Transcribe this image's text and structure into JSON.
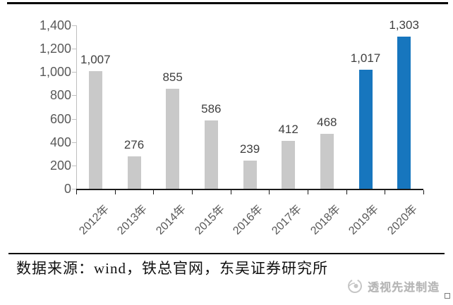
{
  "chart_data": {
    "type": "bar",
    "title": "",
    "xlabel": "",
    "ylabel": "",
    "categories": [
      "2012年",
      "2013年",
      "2014年",
      "2015年",
      "2016年",
      "2017年",
      "2018年",
      "2019年",
      "2020年"
    ],
    "values": [
      1007,
      276,
      855,
      586,
      239,
      412,
      468,
      1017,
      1303
    ],
    "value_labels": [
      "1,007",
      "276",
      "855",
      "586",
      "239",
      "412",
      "468",
      "1,017",
      "1,303"
    ],
    "highlight_indices": [
      7,
      8
    ],
    "ylim": [
      0,
      1400
    ],
    "ytick_interval": 200,
    "ytick_labels": [
      "0",
      "200",
      "400",
      "600",
      "800",
      "1,000",
      "1,200",
      "1,400"
    ],
    "grid": false,
    "legend": "none",
    "data_labels": "above-bars",
    "x_label_rotation_deg": -45
  },
  "colors": {
    "bar_default": "#c9c9c9",
    "bar_highlight": "#1776be",
    "axis_text": "#595959",
    "value_label_text": "#3f3f3f",
    "y_axis_line": "#bfbfbf",
    "x_axis_line": "#1a1a1a",
    "watermark_text": "#b5b5b5",
    "rule": "#000000"
  },
  "footer": {
    "source_line": "数据来源：wind，铁总官网，东吴证券研究所",
    "watermark_label": "透视先进制造",
    "watermark_icon": "swirl-eye-logo-icon",
    "end_mark": "end-of-article-square"
  }
}
